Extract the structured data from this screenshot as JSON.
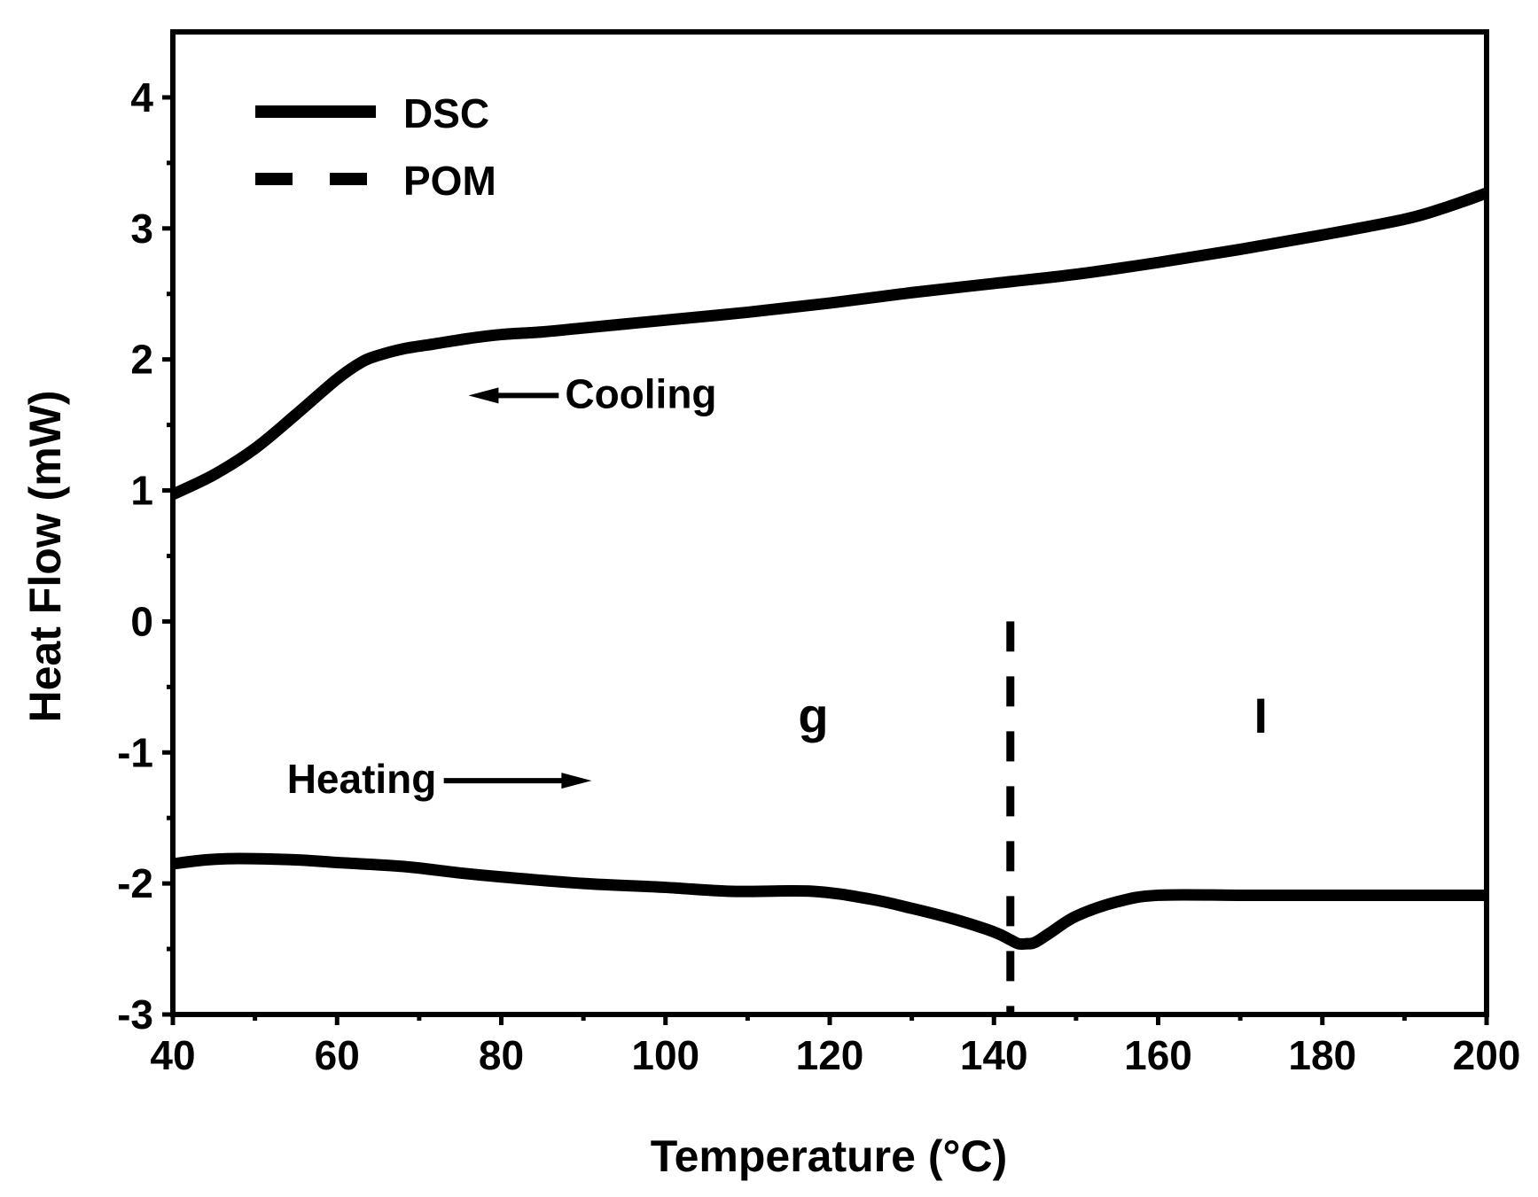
{
  "chart_data": {
    "type": "line",
    "title": "",
    "xlabel": "Temperature (°C)",
    "ylabel": "Heat Flow (mW)",
    "xlim": [
      40,
      200
    ],
    "ylim": [
      -3,
      4.5
    ],
    "xticks": [
      "40",
      "60",
      "80",
      "100",
      "120",
      "140",
      "160",
      "180",
      "200"
    ],
    "yticks": [
      "-3",
      "-2",
      "-1",
      "0",
      "1",
      "2",
      "3",
      "4"
    ],
    "x_minor_step": 10,
    "y_minor_step": 0.5,
    "grid": false,
    "legend_position": "top-left",
    "legend": [
      {
        "label": "DSC",
        "style": "solid"
      },
      {
        "label": "POM",
        "style": "dashed"
      }
    ],
    "series": [
      {
        "name": "Cooling",
        "legend": "DSC",
        "style": "solid",
        "x": [
          40,
          45,
          50,
          55,
          60,
          63,
          65,
          68,
          72,
          76,
          80,
          85,
          90,
          95,
          100,
          110,
          120,
          130,
          140,
          150,
          160,
          170,
          180,
          190,
          195,
          200
        ],
        "y": [
          0.97,
          1.12,
          1.32,
          1.58,
          1.85,
          1.98,
          2.03,
          2.08,
          2.12,
          2.16,
          2.19,
          2.21,
          2.24,
          2.27,
          2.3,
          2.36,
          2.43,
          2.51,
          2.58,
          2.65,
          2.74,
          2.84,
          2.95,
          3.07,
          3.16,
          3.27
        ]
      },
      {
        "name": "Heating",
        "legend": "DSC",
        "style": "solid",
        "x": [
          40,
          44,
          48,
          55,
          60,
          68,
          75,
          80,
          90,
          100,
          108,
          118,
          125,
          130,
          135,
          140,
          142,
          143,
          144,
          145,
          147,
          150,
          155,
          160,
          170,
          180,
          190,
          200
        ],
        "y": [
          -1.85,
          -1.82,
          -1.81,
          -1.82,
          -1.84,
          -1.87,
          -1.92,
          -1.95,
          -2.0,
          -2.03,
          -2.06,
          -2.06,
          -2.12,
          -2.19,
          -2.27,
          -2.37,
          -2.43,
          -2.46,
          -2.46,
          -2.45,
          -2.37,
          -2.25,
          -2.14,
          -2.09,
          -2.09,
          -2.09,
          -2.09,
          -2.09
        ]
      },
      {
        "name": "POM",
        "legend": "POM",
        "style": "dashed",
        "x": [
          142,
          142
        ],
        "y": [
          0,
          -3
        ]
      }
    ],
    "annotations": [
      {
        "text": "Cooling",
        "arrow": "left",
        "x": 97,
        "y": 1.63,
        "arrow_from": 87,
        "arrow_to": 76
      },
      {
        "text": "Heating",
        "arrow": "right",
        "x": 63,
        "y": -1.31,
        "arrow_from": 73,
        "arrow_to": 91
      },
      {
        "text": "g",
        "x": 118,
        "y": -0.85
      },
      {
        "text": "I",
        "x": 172.5,
        "y": -0.85
      }
    ]
  }
}
